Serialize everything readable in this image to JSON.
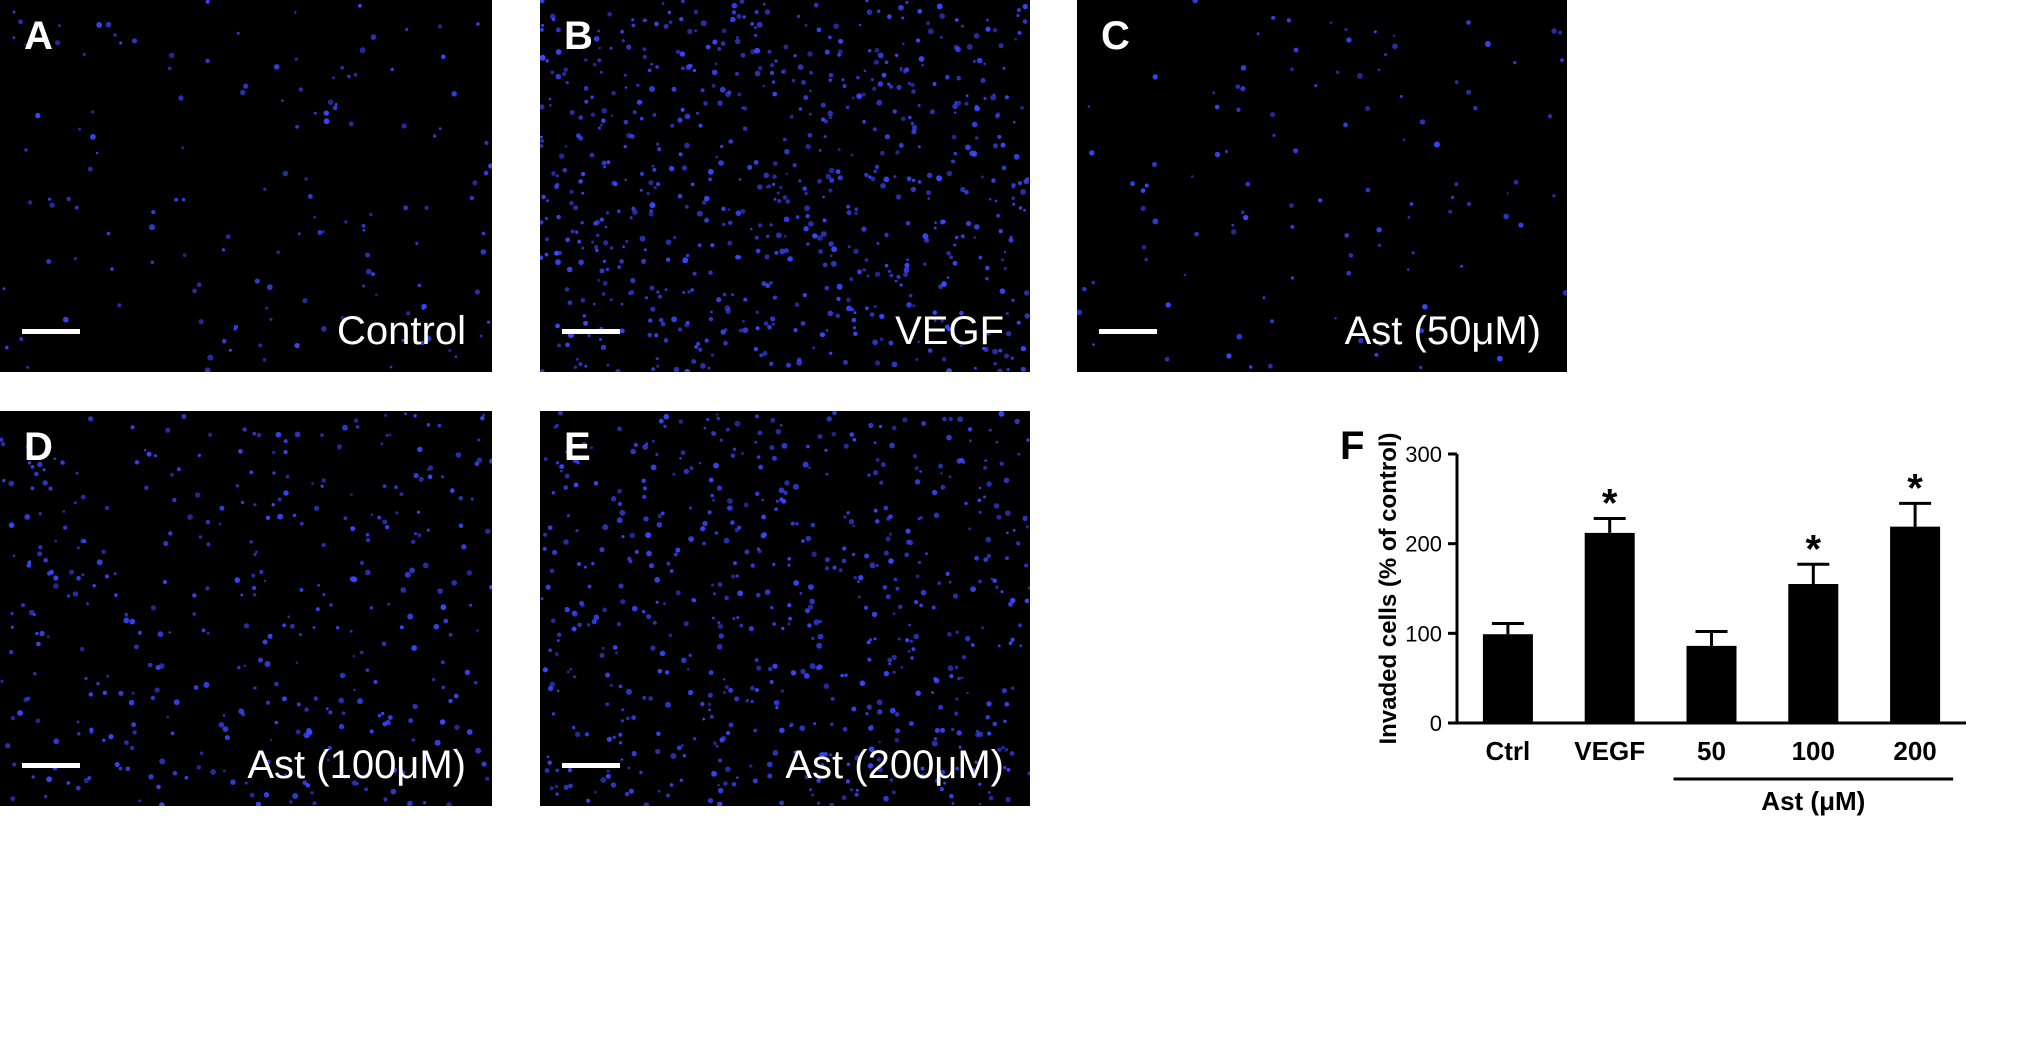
{
  "panels": [
    {
      "id": "a",
      "letter": "A",
      "label": "Control",
      "density": 140
    },
    {
      "id": "b",
      "letter": "B",
      "label": "VEGF",
      "density": 720
    },
    {
      "id": "c",
      "letter": "C",
      "label": "Ast (50μM)",
      "density": 110
    },
    {
      "id": "d",
      "letter": "D",
      "label": "Ast (100μM)",
      "density": 380
    },
    {
      "id": "e",
      "letter": "E",
      "label": "Ast (200μM)",
      "density": 620
    }
  ],
  "dot_color": "#3a46ff",
  "chart_letter": "F",
  "chart_data": {
    "type": "bar",
    "categories": [
      "Ctrl",
      "VEGF",
      "50",
      "100",
      "200"
    ],
    "values": [
      99,
      212,
      86,
      155,
      219
    ],
    "errors": [
      12,
      16,
      16,
      22,
      26
    ],
    "significance": [
      "",
      "*",
      "",
      "*",
      "*"
    ],
    "xlabel": "",
    "ylabel": "Invaded cells (% of control)",
    "group_label": "Ast (μM)",
    "ylim": [
      0,
      300
    ],
    "yticks": [
      0,
      100,
      200,
      300
    ],
    "bar_color": "#000000"
  }
}
